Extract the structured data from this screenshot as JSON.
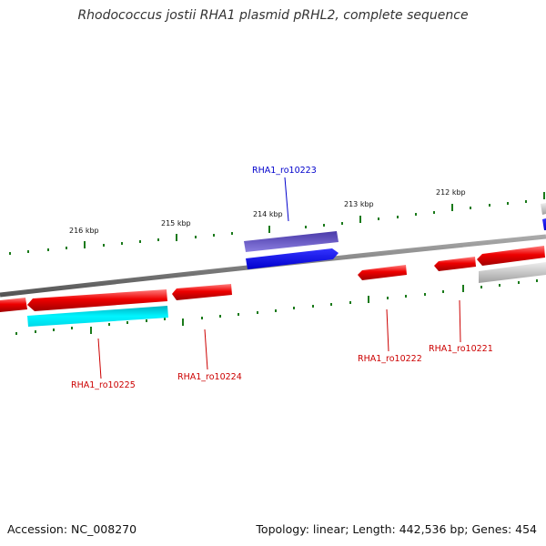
{
  "title": "Rhodococcus jostii RHA1 plasmid pRHL2, complete sequence",
  "accession": "Accession: NC_008270",
  "topology_line": "Topology: linear; Length: 442,536 bp; Genes: 454",
  "kbp_labels": [
    {
      "id": "216",
      "text": "216 kbp"
    },
    {
      "id": "215",
      "text": "215 kbp"
    },
    {
      "id": "214",
      "text": "214 kbp"
    },
    {
      "id": "213",
      "text": "213 kbp"
    },
    {
      "id": "212",
      "text": "212 kbp"
    }
  ],
  "gene_labels": [
    {
      "id": "ro10223",
      "text": "RHA1_ro10223",
      "color": "#0000cc"
    },
    {
      "id": "ro10225",
      "text": "RHA1_ro10225",
      "color": "#cc0000"
    },
    {
      "id": "ro10224",
      "text": "RHA1_ro10224",
      "color": "#cc0000"
    },
    {
      "id": "ro10222",
      "text": "RHA1_ro10222",
      "color": "#cc0000"
    },
    {
      "id": "ro10221",
      "text": "RHA1_ro10221",
      "color": "#cc0000"
    }
  ],
  "colors": {
    "backbone": "#777777",
    "tick": "#1a7a1a",
    "gene_red": "#e60000",
    "gene_blue": "#0000ee",
    "gene_purple": "#6a5acd",
    "gene_cyan": "#00e0f0",
    "gene_gray": "#bbbbbb"
  }
}
